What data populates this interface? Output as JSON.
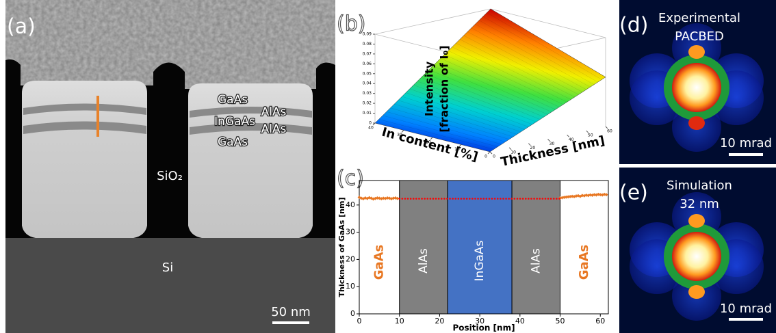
{
  "panels": {
    "a": {
      "label": "(a)",
      "layers": [
        "GaAs",
        "AlAs",
        "InGaAs",
        "AlAs",
        "GaAs"
      ],
      "oxide": "SiO₂",
      "substrate": "Si",
      "scale_bar": "50 nm"
    },
    "d": {
      "label": "(d)",
      "caption": [
        "Experimental",
        "PACBED"
      ],
      "scale_bar": "10 mrad"
    },
    "e": {
      "label": "(e)",
      "caption": [
        "Simulation",
        "32 nm"
      ],
      "scale_bar": "10 mrad"
    }
  },
  "chart_data": [
    {
      "type": "surface",
      "label": "(b)",
      "zlabel": [
        "Intensity",
        "[fraction of I₀]"
      ],
      "xlabel": "In content [%]",
      "ylabel": "Thickness [nm]",
      "xlim": [
        0,
        40
      ],
      "ylim": [
        0,
        60
      ],
      "zlim": [
        0,
        0.09
      ],
      "xticks": [
        0,
        10,
        20,
        30,
        40
      ],
      "yticks": [
        0,
        10,
        20,
        30,
        40,
        50,
        60
      ],
      "zticks": [
        0,
        0.01,
        0.02,
        0.03,
        0.04,
        0.05,
        0.06,
        0.07,
        0.08,
        0.09
      ],
      "x": [
        0,
        40
      ],
      "y": [
        0,
        60
      ],
      "values": [
        [
          0,
          0.05
        ],
        [
          0,
          0.09
        ]
      ],
      "colormap": [
        "#0000c8",
        "#0080ff",
        "#00d0d0",
        "#40e040",
        "#f0f000",
        "#ff8000",
        "#c80000"
      ]
    },
    {
      "type": "line",
      "label": "(c)",
      "xlabel": "Position [nm]",
      "ylabel": "Thickness of GaAs [nm]",
      "xlim": [
        0,
        62
      ],
      "ylim": [
        0,
        49
      ],
      "xticks": [
        0,
        10,
        20,
        30,
        40,
        50,
        60
      ],
      "yticks": [
        0,
        10,
        20,
        30,
        40
      ],
      "regions": [
        {
          "label": "AlAs",
          "xlim": [
            10,
            22
          ],
          "color": "#808080"
        },
        {
          "label": "InGaAs",
          "xlim": [
            22,
            38
          ],
          "color": "#4472c4"
        },
        {
          "label": "AlAs",
          "xlim": [
            38,
            50
          ],
          "color": "#808080"
        }
      ],
      "annotations": [
        {
          "text": "GaAs",
          "x": 5,
          "color": "#e87722"
        },
        {
          "text": "GaAs",
          "x": 56,
          "color": "#e87722"
        }
      ],
      "series": [
        {
          "color": "#e87722",
          "marker": "diamond",
          "x": [
            0,
            0.5,
            1,
            1.5,
            2,
            2.5,
            3,
            3.5,
            4,
            4.5,
            5,
            5.5,
            6,
            6.5,
            7,
            7.5,
            8,
            8.5,
            9,
            9.5
          ],
          "values": [
            42.8,
            42.5,
            42.3,
            42.6,
            42.4,
            42.7,
            42.5,
            42.2,
            42.4,
            42.6,
            42.5,
            42.3,
            42.5,
            42.4,
            42.6,
            42.5,
            42.3,
            42.5,
            42.6,
            42.4
          ]
        },
        {
          "color": "#e87722",
          "marker": "diamond",
          "x": [
            50,
            50.5,
            51,
            51.5,
            52,
            52.5,
            53,
            53.5,
            54,
            54.5,
            55,
            55.5,
            56,
            56.5,
            57,
            57.5,
            58,
            58.5,
            59,
            59.5,
            60,
            60.5,
            61,
            61.5
          ],
          "values": [
            42.6,
            42.7,
            42.8,
            42.9,
            43.0,
            43.1,
            43.2,
            43.1,
            43.3,
            43.4,
            43.2,
            43.5,
            43.4,
            43.6,
            43.5,
            43.7,
            43.6,
            43.8,
            43.7,
            43.9,
            43.8,
            43.7,
            43.9,
            43.8
          ]
        },
        {
          "color": "#ff0000",
          "style": "dotted",
          "x": [
            10,
            50
          ],
          "values": [
            42.3,
            42.3
          ]
        }
      ]
    }
  ]
}
